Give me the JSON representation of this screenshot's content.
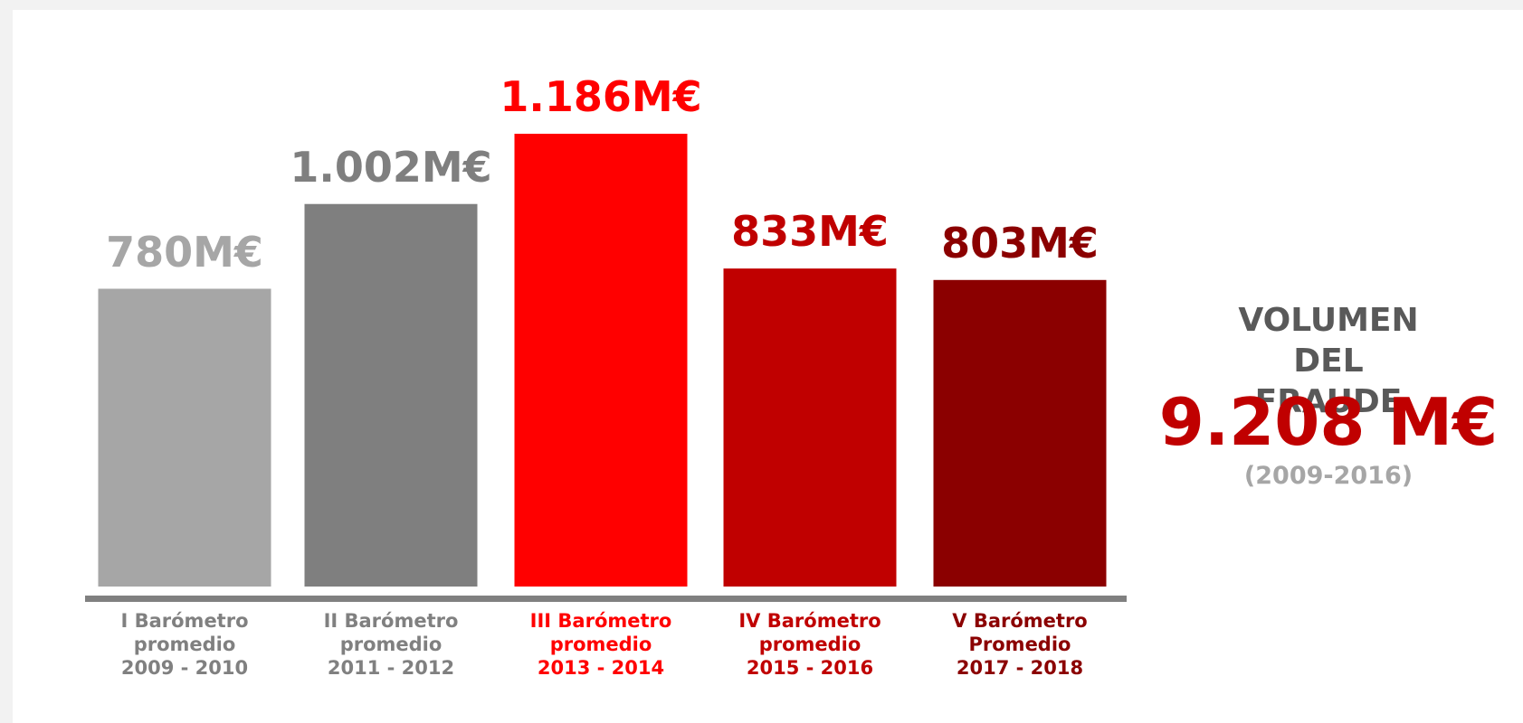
{
  "chart_data": {
    "type": "bar",
    "categories": [
      "I Barómetro\npromedio\n2009 - 2010",
      "II Barómetro\npromedio\n2011 - 2012",
      "III Barómetro\npromedio\n2013 - 2014",
      "IV Barómetro\npromedio\n2015 - 2016",
      "V Barómetro\nPromedio\n2017 - 2018"
    ],
    "values": [
      780,
      1002,
      1186,
      833,
      803
    ],
    "value_labels": [
      "780M€",
      "1.002M€",
      "1.186M€",
      "833M€",
      "803M€"
    ],
    "colors": [
      "#a6a6a6",
      "#7f7f7f",
      "#ff0000",
      "#c00000",
      "#8b0000"
    ],
    "annotation": {
      "heading": "VOLUMEN\nDEL FRAUDE",
      "total": "9.208 M€",
      "period": "(2009-2016)"
    }
  }
}
